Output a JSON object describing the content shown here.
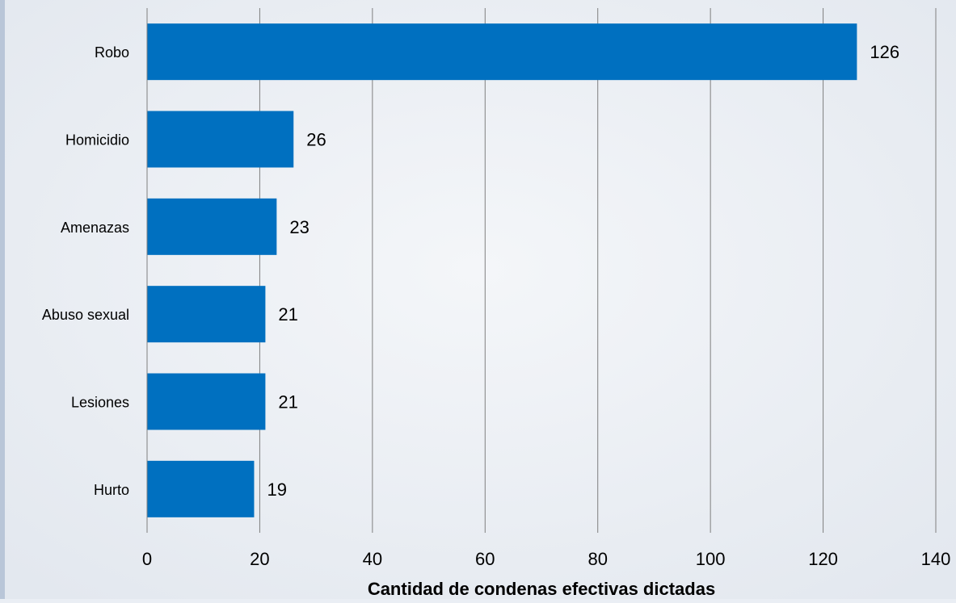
{
  "chart_data": {
    "type": "bar",
    "orientation": "horizontal",
    "categories": [
      "Robo",
      "Homicidio",
      "Amenazas",
      "Abuso sexual",
      "Lesiones",
      "Hurto"
    ],
    "values": [
      126,
      26,
      23,
      21,
      21,
      19
    ],
    "value_labels": [
      "126",
      "26",
      "23",
      "21",
      "21",
      "19"
    ],
    "title": "",
    "xlabel": "Cantidad de condenas efectivas dictadas",
    "ylabel": "",
    "xlim": [
      0,
      140
    ],
    "xticks": [
      0,
      20,
      40,
      60,
      80,
      100,
      120,
      140
    ],
    "xtick_labels": [
      "0",
      "20",
      "40",
      "60",
      "80",
      "100",
      "120",
      "140"
    ],
    "grid": "vertical",
    "legend": "none",
    "bar_color": "#0070c0",
    "grid_color": "#7f7f7f",
    "background_color": "#eaeef4"
  }
}
